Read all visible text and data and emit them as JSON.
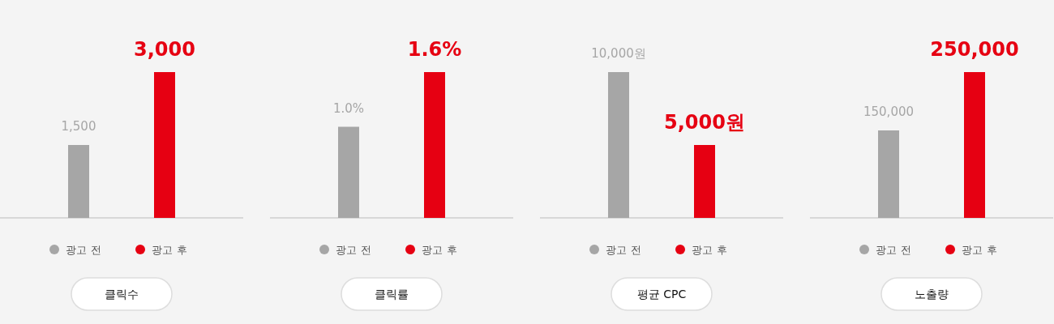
{
  "chart_data": [
    {
      "type": "bar",
      "title": "클릭수",
      "categories": [
        "광고 전",
        "광고 후"
      ],
      "colors": [
        "#a6a6a6",
        "#e60012"
      ],
      "values": [
        1500,
        3000
      ],
      "value_labels": [
        "1,500",
        "3,000"
      ]
    },
    {
      "type": "bar",
      "title": "클릭률",
      "categories": [
        "광고 전",
        "광고 후"
      ],
      "colors": [
        "#a6a6a6",
        "#e60012"
      ],
      "values": [
        1.0,
        1.6
      ],
      "value_labels": [
        "1.0%",
        "1.6%"
      ]
    },
    {
      "type": "bar",
      "title": "평균 CPC",
      "categories": [
        "광고 전",
        "광고 후"
      ],
      "colors": [
        "#a6a6a6",
        "#e60012"
      ],
      "values": [
        10000,
        5000
      ],
      "value_labels": [
        "10,000원",
        "5,000원"
      ]
    },
    {
      "type": "bar",
      "title": "노출량",
      "categories": [
        "광고 전",
        "광고 후"
      ],
      "colors": [
        "#a6a6a6",
        "#e60012"
      ],
      "values": [
        150000,
        250000
      ],
      "value_labels": [
        "150,000",
        "250,000"
      ]
    }
  ]
}
